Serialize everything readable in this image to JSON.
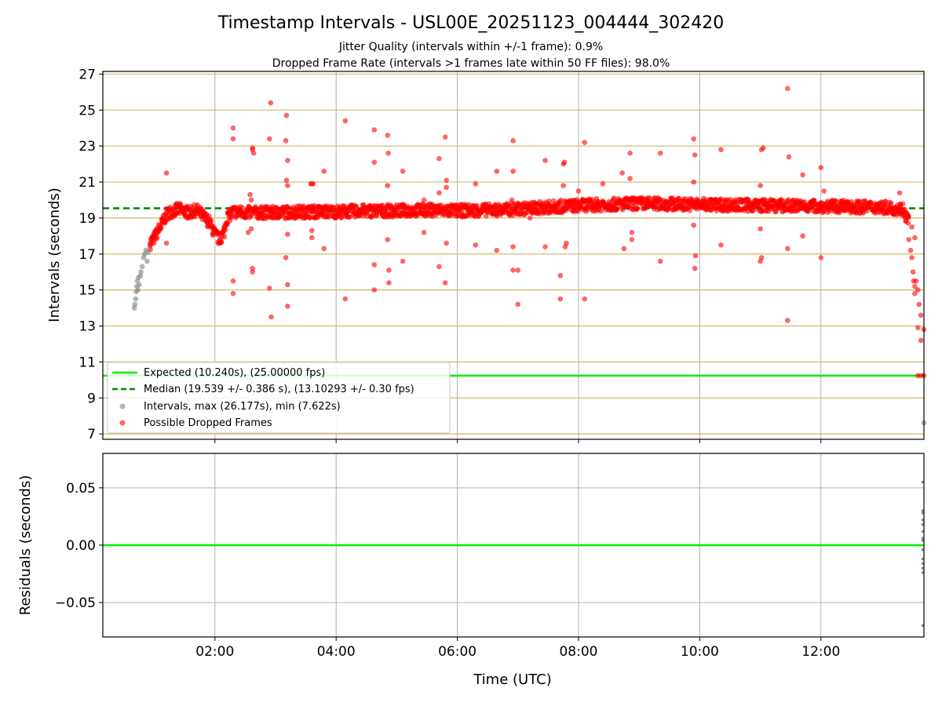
{
  "figure": {
    "title": "Timestamp Intervals - USL00E_20251123_004444_302420",
    "subtitle_1": "Jitter Quality (intervals within +/-1 frame): 0.9%",
    "subtitle_2": "Dropped Frame Rate (intervals >1 frames late within 50 FF files): 98.0%",
    "xlabel": "Time (UTC)"
  },
  "colors": {
    "expected": "#00ee00",
    "median": "#008000",
    "intervals": "#808080",
    "dropped": "#ff0000",
    "hgrid_top": "#d4b86a",
    "grid": "#b0b0b0"
  },
  "chart_data": [
    {
      "type": "scatter",
      "panel": "intervals",
      "ylabel": "Intervals (seconds)",
      "xlim_hours": [
        0.15,
        13.7
      ],
      "ylim": [
        6.7,
        27.15
      ],
      "xticks": [
        {
          "value": 2,
          "label": "02:00"
        },
        {
          "value": 4,
          "label": "04:00"
        },
        {
          "value": 6,
          "label": "06:00"
        },
        {
          "value": 8,
          "label": "08:00"
        },
        {
          "value": 10,
          "label": "10:00"
        },
        {
          "value": 12,
          "label": "12:00"
        }
      ],
      "yticks": [
        {
          "value": 7,
          "label": "7"
        },
        {
          "value": 9,
          "label": "9"
        },
        {
          "value": 11,
          "label": "11"
        },
        {
          "value": 13,
          "label": "13"
        },
        {
          "value": 15,
          "label": "15"
        },
        {
          "value": 17,
          "label": "17"
        },
        {
          "value": 19,
          "label": "19"
        },
        {
          "value": 21,
          "label": "21"
        },
        {
          "value": 23,
          "label": "23"
        },
        {
          "value": 25,
          "label": "25"
        },
        {
          "value": 27,
          "label": "27"
        }
      ],
      "expected_interval": 10.24,
      "median_interval": 19.539,
      "legend": [
        {
          "kind": "solid-line",
          "label": "Expected (10.240s), (25.00000 fps)"
        },
        {
          "kind": "dashed-line",
          "label": "Median (19.539 +/- 0.386 s), (13.10293 +/- 0.30 fps)"
        },
        {
          "kind": "gray-dot",
          "label": "Intervals, max (26.177s), min (7.622s)"
        },
        {
          "kind": "red-dot",
          "label": "Possible Dropped Frames"
        }
      ],
      "legend_location": "lower-left",
      "series": [
        {
          "name": "Intervals",
          "color": "#808080",
          "points": [
            [
              0.67,
              14.0
            ],
            [
              0.68,
              14.2
            ],
            [
              0.69,
              14.5
            ],
            [
              0.7,
              14.9
            ],
            [
              0.71,
              15.2
            ],
            [
              0.72,
              15.5
            ],
            [
              0.73,
              15.0
            ],
            [
              0.74,
              15.7
            ],
            [
              0.75,
              15.3
            ],
            [
              0.77,
              15.8
            ],
            [
              0.78,
              16.0
            ],
            [
              0.8,
              16.3
            ],
            [
              0.82,
              16.8
            ],
            [
              0.84,
              17.0
            ],
            [
              0.86,
              17.2
            ],
            [
              0.88,
              16.6
            ],
            [
              0.9,
              17.1
            ],
            [
              13.7,
              7.62
            ]
          ]
        },
        {
          "name": "Possible Dropped Frames (outliers)",
          "color": "#ff0000",
          "points": [
            [
              0.93,
              17.6
            ],
            [
              1.0,
              18.0
            ],
            [
              1.1,
              18.4
            ],
            [
              1.2,
              21.5
            ],
            [
              1.2,
              17.6
            ],
            [
              1.5,
              19.3
            ],
            [
              2.3,
              24.0
            ],
            [
              2.3,
              23.4
            ],
            [
              2.3,
              15.5
            ],
            [
              2.3,
              14.8
            ],
            [
              2.58,
              20.3
            ],
            [
              2.62,
              22.9
            ],
            [
              2.62,
              22.8
            ],
            [
              2.64,
              22.6
            ],
            [
              2.62,
              16.0
            ],
            [
              2.62,
              16.2
            ],
            [
              2.55,
              18.2
            ],
            [
              2.6,
              18.4
            ],
            [
              2.6,
              20.0
            ],
            [
              2.92,
              25.4
            ],
            [
              2.9,
              23.4
            ],
            [
              2.9,
              15.1
            ],
            [
              2.93,
              13.5
            ],
            [
              2.95,
              19.0
            ],
            [
              3.18,
              24.7
            ],
            [
              3.17,
              23.3
            ],
            [
              3.2,
              22.2
            ],
            [
              3.18,
              21.1
            ],
            [
              3.2,
              20.8
            ],
            [
              3.2,
              18.1
            ],
            [
              3.17,
              16.8
            ],
            [
              3.2,
              15.3
            ],
            [
              3.2,
              14.1
            ],
            [
              3.58,
              20.9
            ],
            [
              3.6,
              20.9
            ],
            [
              3.62,
              20.9
            ],
            [
              3.6,
              18.3
            ],
            [
              3.6,
              17.9
            ],
            [
              3.8,
              21.6
            ],
            [
              3.8,
              17.3
            ],
            [
              4.15,
              24.4
            ],
            [
              4.15,
              14.5
            ],
            [
              4.63,
              23.9
            ],
            [
              4.63,
              22.1
            ],
            [
              4.63,
              16.4
            ],
            [
              4.63,
              15.0
            ],
            [
              4.85,
              23.6
            ],
            [
              4.86,
              22.6
            ],
            [
              4.85,
              20.8
            ],
            [
              4.85,
              17.8
            ],
            [
              4.87,
              16.1
            ],
            [
              4.87,
              15.4
            ],
            [
              5.1,
              21.6
            ],
            [
              5.1,
              16.6
            ],
            [
              5.45,
              20.0
            ],
            [
              5.45,
              18.2
            ],
            [
              5.7,
              22.3
            ],
            [
              5.7,
              20.4
            ],
            [
              5.7,
              16.3
            ],
            [
              5.8,
              23.5
            ],
            [
              5.82,
              21.1
            ],
            [
              5.82,
              20.7
            ],
            [
              5.82,
              17.6
            ],
            [
              5.8,
              15.4
            ],
            [
              6.3,
              20.9
            ],
            [
              6.3,
              17.5
            ],
            [
              6.65,
              21.6
            ],
            [
              6.65,
              17.2
            ],
            [
              6.92,
              23.3
            ],
            [
              6.92,
              21.6
            ],
            [
              6.92,
              17.4
            ],
            [
              6.92,
              16.1
            ],
            [
              6.9,
              20.0
            ],
            [
              7.0,
              16.1
            ],
            [
              7.0,
              14.2
            ],
            [
              7.2,
              19.0
            ],
            [
              7.45,
              22.2
            ],
            [
              7.45,
              17.4
            ],
            [
              7.7,
              15.8
            ],
            [
              7.7,
              14.5
            ],
            [
              7.75,
              22.0
            ],
            [
              7.77,
              22.1
            ],
            [
              7.75,
              20.8
            ],
            [
              7.78,
              17.4
            ],
            [
              7.8,
              17.6
            ],
            [
              8.0,
              20.5
            ],
            [
              8.1,
              23.2
            ],
            [
              8.1,
              14.5
            ],
            [
              8.4,
              20.9
            ],
            [
              8.72,
              21.5
            ],
            [
              8.75,
              17.3
            ],
            [
              8.85,
              22.6
            ],
            [
              8.85,
              21.2
            ],
            [
              8.88,
              18.2
            ],
            [
              8.88,
              17.8
            ],
            [
              9.35,
              22.6
            ],
            [
              9.35,
              16.6
            ],
            [
              9.9,
              23.4
            ],
            [
              9.92,
              22.5
            ],
            [
              9.93,
              16.9
            ],
            [
              9.92,
              16.2
            ],
            [
              9.9,
              18.6
            ],
            [
              9.9,
              21.0
            ],
            [
              10.35,
              22.8
            ],
            [
              10.35,
              17.5
            ],
            [
              11.02,
              22.8
            ],
            [
              11.05,
              22.9
            ],
            [
              11.0,
              20.8
            ],
            [
              11.0,
              18.4
            ],
            [
              11.02,
              16.8
            ],
            [
              11.0,
              16.6
            ],
            [
              11.45,
              26.2
            ],
            [
              11.47,
              22.4
            ],
            [
              11.45,
              17.3
            ],
            [
              11.45,
              13.3
            ],
            [
              11.7,
              21.4
            ],
            [
              11.7,
              18.0
            ],
            [
              12.0,
              21.8
            ],
            [
              12.0,
              16.8
            ],
            [
              12.05,
              20.5
            ],
            [
              13.3,
              20.4
            ],
            [
              13.45,
              17.8
            ],
            [
              13.48,
              17.2
            ],
            [
              13.5,
              16.8
            ],
            [
              13.52,
              16.0
            ],
            [
              13.53,
              15.5
            ],
            [
              13.55,
              15.2
            ],
            [
              13.55,
              14.8
            ],
            [
              13.57,
              15.5
            ],
            [
              13.6,
              15.0
            ],
            [
              13.62,
              14.2
            ],
            [
              13.6,
              12.9
            ],
            [
              13.65,
              13.6
            ],
            [
              13.65,
              12.2
            ],
            [
              13.7,
              12.8
            ],
            [
              13.5,
              18.5
            ],
            [
              13.55,
              17.9
            ],
            [
              13.6,
              10.24
            ],
            [
              13.65,
              10.24
            ],
            [
              13.7,
              10.24
            ]
          ]
        }
      ],
      "dropped_band": {
        "name": "Possible Dropped Frames (main band)",
        "color": "#ff0000",
        "spread": 0.35,
        "profile_hours": [
          0.93,
          1.0,
          1.1,
          1.2,
          1.3,
          1.4,
          1.5,
          1.6,
          1.7,
          1.8,
          1.9,
          2.0,
          2.08,
          2.15,
          2.2,
          2.3,
          2.5,
          3.0,
          3.5,
          4.0,
          4.5,
          5.0,
          5.5,
          6.0,
          6.5,
          6.7,
          7.0,
          7.5,
          8.0,
          9.0,
          10.0,
          11.0,
          12.0,
          13.0,
          13.35,
          13.45
        ],
        "profile_values": [
          17.6,
          17.9,
          18.5,
          19.2,
          19.4,
          19.5,
          19.35,
          19.3,
          19.45,
          19.1,
          18.8,
          18.1,
          17.8,
          18.2,
          19.0,
          19.35,
          19.3,
          19.3,
          19.35,
          19.35,
          19.4,
          19.4,
          19.45,
          19.4,
          19.45,
          19.45,
          19.5,
          19.6,
          19.7,
          19.8,
          19.75,
          19.7,
          19.65,
          19.6,
          19.5,
          18.8
        ]
      }
    },
    {
      "type": "scatter",
      "panel": "residuals",
      "ylabel": "Residuals (seconds)",
      "xlim_hours": [
        0.15,
        13.7
      ],
      "ylim": [
        -0.08,
        0.08
      ],
      "yticks": [
        {
          "value": 0.05,
          "label": "0.05"
        },
        {
          "value": 0.0,
          "label": "0.00"
        },
        {
          "value": -0.05,
          "label": "−0.05"
        }
      ],
      "zero_line": 0,
      "series": [
        {
          "name": "Residuals",
          "color": "#808080",
          "points": [
            [
              13.68,
              0.055
            ],
            [
              13.68,
              0.03
            ],
            [
              13.68,
              0.028
            ],
            [
              13.68,
              0.022
            ],
            [
              13.68,
              0.018
            ],
            [
              13.68,
              0.012
            ],
            [
              13.68,
              0.006
            ],
            [
              13.68,
              0.004
            ],
            [
              13.68,
              -0.004
            ],
            [
              13.68,
              -0.012
            ],
            [
              13.68,
              -0.016
            ],
            [
              13.68,
              -0.02
            ],
            [
              13.68,
              -0.024
            ],
            [
              13.68,
              -0.07
            ]
          ]
        }
      ]
    }
  ]
}
